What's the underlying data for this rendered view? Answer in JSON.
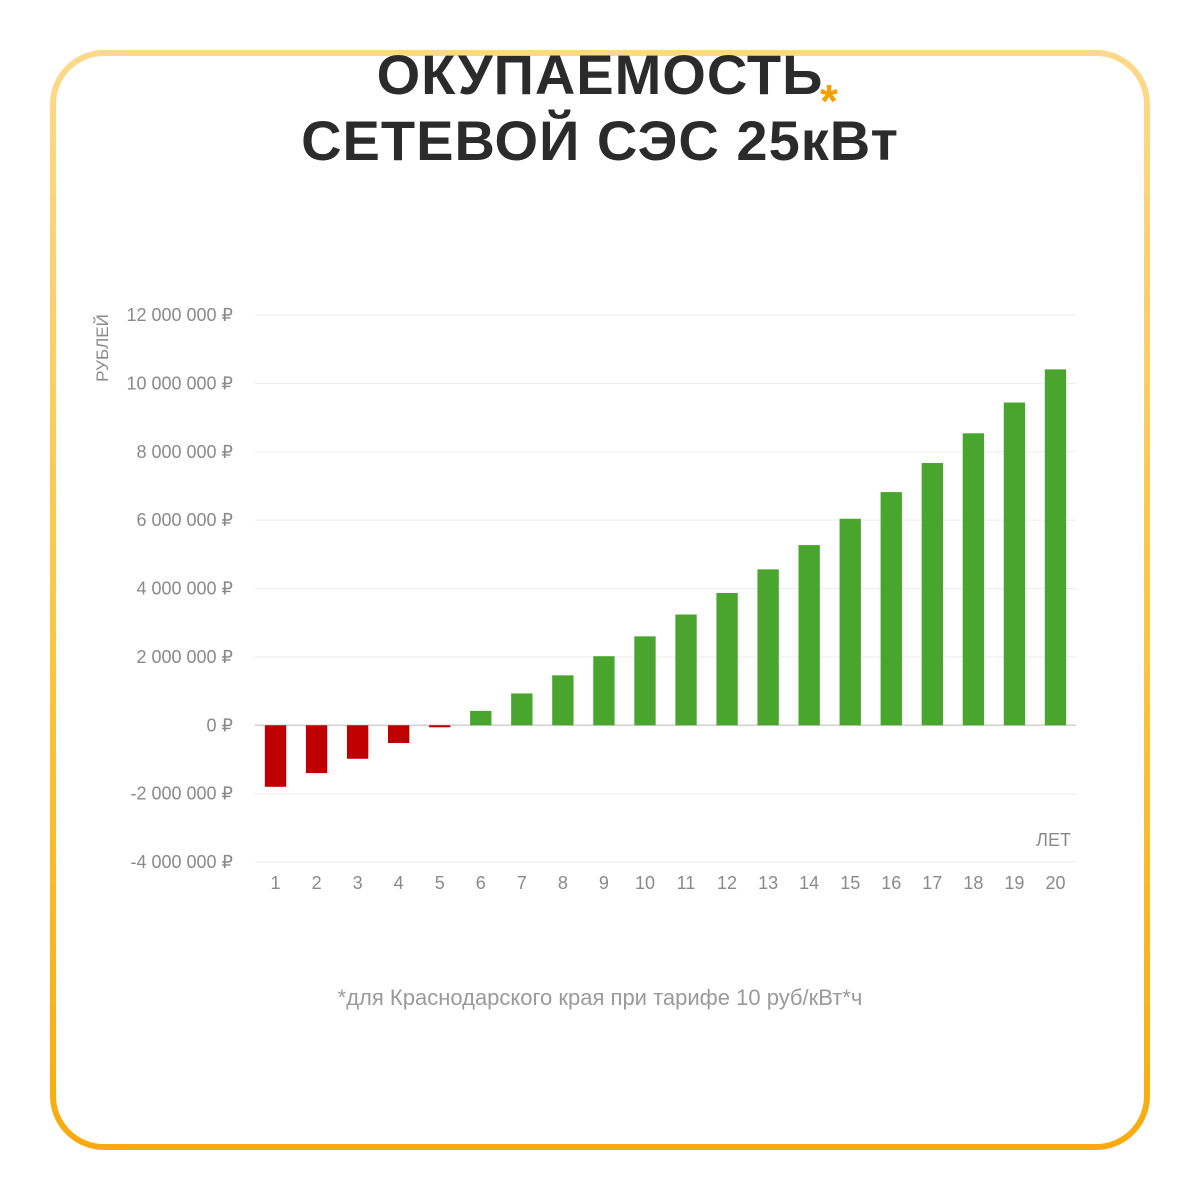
{
  "title": {
    "line1": "ОКУПАЕМОСТЬ",
    "line2": "СЕТЕВОЙ СЭС 25кВт",
    "mark": "*"
  },
  "footnote": "*для Краснодарского края при тарифе 10 руб/кВт*ч",
  "colors": {
    "negative": "#c00000",
    "positive": "#4aa52e",
    "accent": "#f5a000"
  },
  "chart_data": {
    "type": "bar",
    "ylabel": "РУБЛЕЙ",
    "xlabel": "ЛЕТ",
    "ylim": [
      -4000000,
      12000000
    ],
    "yticks": [
      12000000,
      10000000,
      8000000,
      6000000,
      4000000,
      2000000,
      0,
      -2000000,
      -4000000
    ],
    "ytick_labels": [
      "12 000 000 ₽",
      "10 000 000 ₽",
      "8 000 000 ₽",
      "6 000 000 ₽",
      "4 000 000 ₽",
      "2 000 000 ₽",
      "0 ₽",
      "-2 000 000 ₽",
      "-4 000 000 ₽"
    ],
    "categories": [
      "1",
      "2",
      "3",
      "4",
      "5",
      "6",
      "7",
      "8",
      "9",
      "10",
      "11",
      "12",
      "13",
      "14",
      "15",
      "16",
      "17",
      "18",
      "19",
      "20"
    ],
    "values": [
      -1800000,
      -1400000,
      -980000,
      -520000,
      -60000,
      420000,
      930000,
      1460000,
      2020000,
      2600000,
      3240000,
      3870000,
      4560000,
      5270000,
      6040000,
      6820000,
      7670000,
      8540000,
      9440000,
      10410000
    ],
    "grid": true
  }
}
